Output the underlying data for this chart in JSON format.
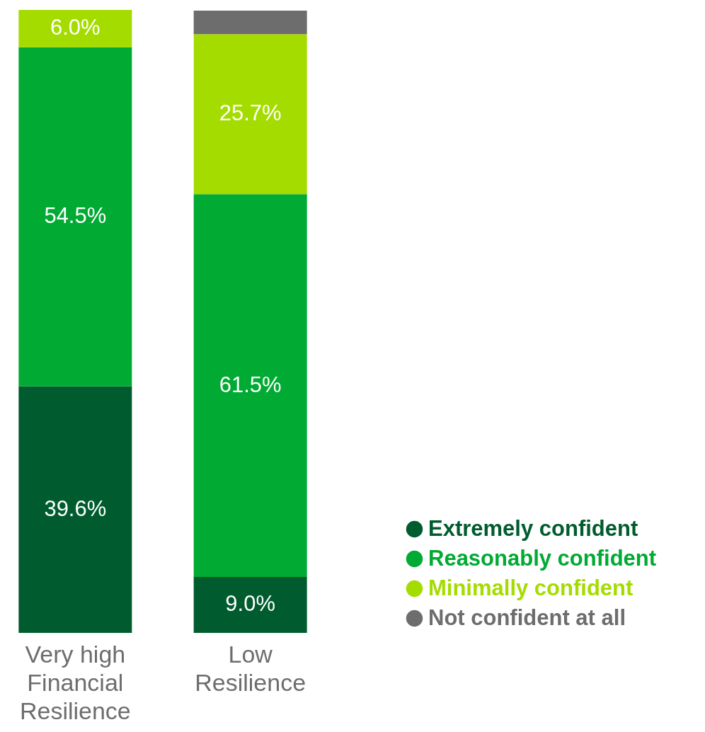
{
  "chart_data": {
    "type": "bar",
    "stacked": true,
    "categories": [
      "Very high Financial Resilience",
      "Low Resilience"
    ],
    "series": [
      {
        "name": "Extremely confident",
        "color": "#005c2e",
        "values": [
          39.6,
          9.0
        ],
        "value_labels": [
          "39.6%",
          "9.0%"
        ]
      },
      {
        "name": "Reasonably confident",
        "color": "#00aa33",
        "values": [
          54.5,
          61.5
        ],
        "value_labels": [
          "54.5%",
          "61.5%"
        ]
      },
      {
        "name": "Minimally confident",
        "color": "#a5dc00",
        "values": [
          6.0,
          25.7
        ],
        "value_labels": [
          "6.0%",
          "25.7%"
        ]
      },
      {
        "name": "Not confident at all",
        "color": "#6d6d6d",
        "values": [
          null,
          3.8
        ],
        "value_labels": [
          null,
          null
        ]
      }
    ],
    "legend": "bottom right"
  }
}
